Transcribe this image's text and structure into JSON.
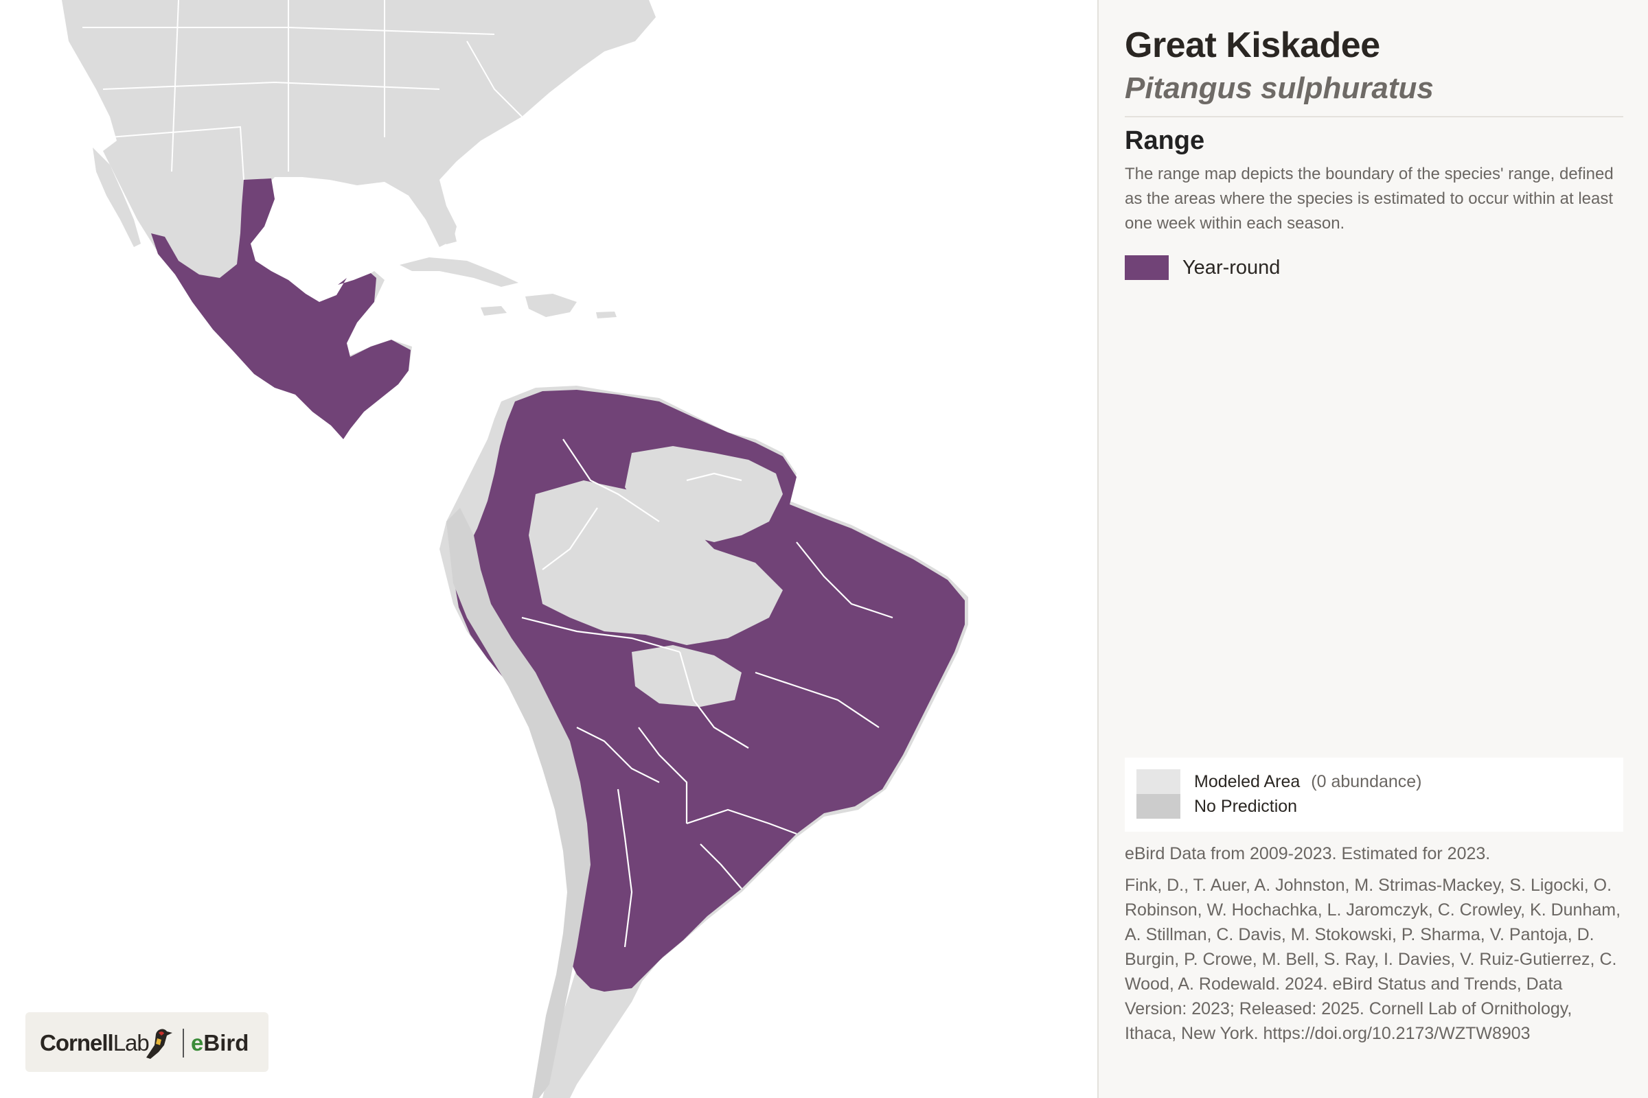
{
  "species": {
    "common_name": "Great Kiskadee",
    "scientific_name": "Pitangus sulphuratus"
  },
  "range_section": {
    "heading": "Range",
    "description": "The range map depicts the boundary of the species' range, defined as the areas where the species is estimated to occur within at least one week within each season."
  },
  "legend": {
    "items": [
      {
        "label": "Year-round",
        "color": "#714377"
      }
    ]
  },
  "modeled_legend": {
    "modeled_label": "Modeled Area",
    "modeled_note": "(0 abundance)",
    "modeled_color": "#e6e6e6",
    "no_prediction_label": "No Prediction",
    "no_prediction_color": "#cccccc"
  },
  "data_note": "eBird Data from 2009-2023. Estimated for 2023.",
  "citation": "Fink, D., T. Auer, A. Johnston, M. Strimas-Mackey, S. Ligocki, O. Robinson, W. Hochachka, L. Jaromczyk, C. Crowley, K. Dunham, A. Stillman, C. Davis, M. Stokowski, P. Sharma, V. Pantoja, D. Burgin, P. Crowe, M. Bell, S. Ray, I. Davies, V. Ruiz-Gutierrez, C. Wood, A. Rodewald. 2024. eBird Status and Trends, Data Version: 2023; Released: 2025. Cornell Lab of Ornithology, Ithaca, New York. https://doi.org/10.2173/WZTW8903",
  "logo": {
    "cornell_bold": "Cornell",
    "cornell_rest": "Lab",
    "ebird_e": "e",
    "ebird_rest": "Bird"
  },
  "colors": {
    "range": "#714377",
    "land": "#dcdcdc",
    "water": "#ffffff",
    "borders": "#ffffff"
  }
}
